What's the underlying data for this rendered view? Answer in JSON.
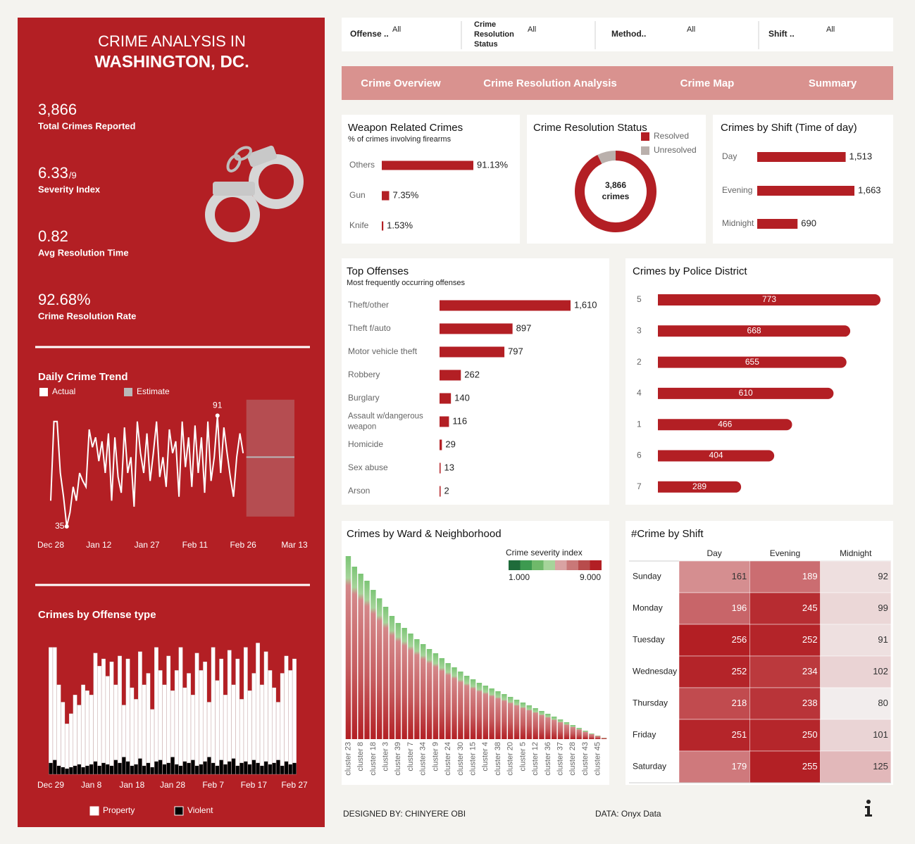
{
  "sidebar": {
    "title_lines": [
      "CRIME ANALYSIS IN",
      "WASHINGTON, DC."
    ],
    "kpis": [
      {
        "value": "3,866",
        "label": "Total Crimes Reported"
      },
      {
        "value": "6.33",
        "unit": "/9",
        "label": "Severity Index"
      },
      {
        "value": "0.82",
        "label": "Avg Resolution Time"
      },
      {
        "value": "92.68%",
        "label": "Crime Resolution Rate"
      }
    ]
  },
  "filters": [
    {
      "label": "Offense ..",
      "value": "All"
    },
    {
      "label": "Crime Resolution Status",
      "value": "All"
    },
    {
      "label": "Method..",
      "value": "All"
    },
    {
      "label": "Shift ..",
      "value": "All"
    }
  ],
  "tabs": [
    "Crime Overview",
    "Crime Resolution Analysis",
    "Crime Map",
    "Summary"
  ],
  "footer": {
    "designer": "DESIGNED BY: CHINYERE OBI",
    "source": "DATA: Onyx Data"
  },
  "chart_data": [
    {
      "type": "line",
      "title": "Daily Crime Trend",
      "x": [
        "Dec 28",
        "Dec 29",
        "Dec 30",
        "Dec 31",
        "Jan 1",
        "Jan 2",
        "Jan 3",
        "Jan 4",
        "Jan 5",
        "Jan 6",
        "Jan 7",
        "Jan 8",
        "Jan 9",
        "Jan 10",
        "Jan 11",
        "Jan 12",
        "Jan 13",
        "Jan 14",
        "Jan 15",
        "Jan 16",
        "Jan 17",
        "Jan 18",
        "Jan 19",
        "Jan 20",
        "Jan 21",
        "Jan 22",
        "Jan 23",
        "Jan 24",
        "Jan 25",
        "Jan 26",
        "Jan 27",
        "Jan 28",
        "Jan 29",
        "Jan 30",
        "Jan 31",
        "Feb 1",
        "Feb 2",
        "Feb 3",
        "Feb 4",
        "Feb 5",
        "Feb 6",
        "Feb 7",
        "Feb 8",
        "Feb 9",
        "Feb 10",
        "Feb 11",
        "Feb 12",
        "Feb 13",
        "Feb 14",
        "Feb 15",
        "Feb 16",
        "Feb 17",
        "Feb 18",
        "Feb 19",
        "Feb 20",
        "Feb 21",
        "Feb 22",
        "Feb 23",
        "Feb 24",
        "Feb 25",
        "Feb 26"
      ],
      "series": [
        {
          "name": "Actual",
          "color": "#ffffff",
          "values": [
            48,
            88,
            88,
            62,
            50,
            35,
            42,
            55,
            48,
            62,
            58,
            55,
            84,
            75,
            80,
            68,
            78,
            62,
            82,
            48,
            80,
            60,
            52,
            85,
            62,
            70,
            45,
            88,
            72,
            62,
            82,
            58,
            72,
            88,
            60,
            70,
            55,
            84,
            72,
            78,
            50,
            88,
            65,
            80,
            55,
            86,
            62,
            80,
            52,
            88,
            58,
            70,
            91,
            62,
            85,
            72,
            60,
            50,
            70,
            82,
            72
          ]
        }
      ],
      "estimate": {
        "name": "Estimate",
        "color": "#b9b9b9",
        "x": [
          "Feb 27",
          "Mar 13"
        ],
        "value": 70,
        "range": [
          40,
          99
        ]
      },
      "annotate_extremes": true,
      "xlim": [
        "Dec 28",
        "Mar 13"
      ],
      "xticks": [
        "Dec 28",
        "Jan 12",
        "Jan 27",
        "Feb 11",
        "Feb 26",
        "Mar 13"
      ],
      "ylim": [
        30,
        100
      ]
    },
    {
      "type": "bar",
      "stacked": true,
      "title": "Crimes by Offense type",
      "x": [
        "Dec 29",
        "Dec 30",
        "Dec 31",
        "Jan 1",
        "Jan 2",
        "Jan 3",
        "Jan 4",
        "Jan 5",
        "Jan 6",
        "Jan 7",
        "Jan 8",
        "Jan 9",
        "Jan 10",
        "Jan 11",
        "Jan 12",
        "Jan 13",
        "Jan 14",
        "Jan 15",
        "Jan 16",
        "Jan 17",
        "Jan 18",
        "Jan 19",
        "Jan 20",
        "Jan 21",
        "Jan 22",
        "Jan 23",
        "Jan 24",
        "Jan 25",
        "Jan 26",
        "Jan 27",
        "Jan 28",
        "Jan 29",
        "Jan 30",
        "Jan 31",
        "Feb 1",
        "Feb 2",
        "Feb 3",
        "Feb 4",
        "Feb 5",
        "Feb 6",
        "Feb 7",
        "Feb 8",
        "Feb 9",
        "Feb 10",
        "Feb 11",
        "Feb 12",
        "Feb 13",
        "Feb 14",
        "Feb 15",
        "Feb 16",
        "Feb 17",
        "Feb 18",
        "Feb 19",
        "Feb 20",
        "Feb 21",
        "Feb 22",
        "Feb 23",
        "Feb 24",
        "Feb 25",
        "Feb 26",
        "Feb 27"
      ],
      "series": [
        {
          "name": "Violent",
          "color": "#000000",
          "values": [
            8,
            10,
            6,
            5,
            4,
            5,
            6,
            7,
            5,
            6,
            7,
            9,
            6,
            8,
            7,
            6,
            10,
            8,
            12,
            9,
            6,
            7,
            11,
            6,
            8,
            5,
            9,
            10,
            7,
            8,
            12,
            7,
            6,
            9,
            8,
            10,
            6,
            7,
            9,
            12,
            8,
            6,
            10,
            7,
            9,
            11,
            6,
            8,
            9,
            7,
            10,
            8,
            6,
            9,
            7,
            8,
            10,
            6,
            9,
            7,
            8
          ]
        },
        {
          "name": "Property",
          "color": "#ffffff",
          "values": [
            80,
            78,
            56,
            45,
            31,
            37,
            49,
            41,
            57,
            52,
            48,
            75,
            69,
            72,
            61,
            72,
            52,
            74,
            36,
            71,
            54,
            45,
            74,
            56,
            62,
            40,
            79,
            62,
            55,
            74,
            46,
            65,
            82,
            51,
            62,
            45,
            78,
            65,
            69,
            38,
            80,
            59,
            70,
            48,
            77,
            51,
            74,
            44,
            79,
            51,
            60,
            83,
            56,
            76,
            65,
            52,
            40,
            64,
            73,
            65,
            72
          ]
        }
      ],
      "xlim": [
        "Dec 29",
        "Feb 27"
      ],
      "xticks": [
        "Dec 29",
        "Jan 8",
        "Jan 18",
        "Jan 28",
        "Feb 7",
        "Feb 17",
        "Feb 27"
      ]
    },
    {
      "type": "bar",
      "orientation": "horizontal",
      "title": "Weapon Related Crimes",
      "subtitle": "% of crimes involving firearms",
      "categories": [
        "Others",
        "Gun",
        "Knife"
      ],
      "values": [
        91.13,
        7.35,
        1.53
      ],
      "value_labels": [
        "91.13%",
        "7.35%",
        "1.53%"
      ],
      "color": "#b31f24"
    },
    {
      "type": "pie",
      "title": "Crime Resolution Status",
      "categories": [
        "Resolved",
        "Unresolved"
      ],
      "values": [
        92.68,
        7.32
      ],
      "colors": [
        "#b31f24",
        "#bab0ac"
      ],
      "center_value": "3,866",
      "center_text": "crimes"
    },
    {
      "type": "bar",
      "orientation": "horizontal",
      "title": "Crimes by Shift (Time of day)",
      "categories": [
        "Day",
        "Evening",
        "Midnight"
      ],
      "values": [
        1513,
        1663,
        690
      ],
      "value_labels": [
        "1,513",
        "1,663",
        "690"
      ],
      "color": "#b31f24"
    },
    {
      "type": "bar",
      "orientation": "horizontal",
      "title": "Top Offenses",
      "subtitle": "Most frequently occurring offenses",
      "categories": [
        "Theft/other",
        "Theft f/auto",
        "Motor vehicle theft",
        "Robbery",
        "Burglary",
        "Assault w/dangerous weapon",
        "Homicide",
        "Sex abuse",
        "Arson"
      ],
      "values": [
        1610,
        897,
        797,
        262,
        140,
        116,
        29,
        13,
        2
      ],
      "value_labels": [
        "1,610",
        "897",
        "797",
        "262",
        "140",
        "116",
        "29",
        "13",
        "2"
      ],
      "color": "#b31f24"
    },
    {
      "type": "bar",
      "orientation": "horizontal",
      "labels_inside": true,
      "title": "Crimes by Police District",
      "categories": [
        "5",
        "3",
        "2",
        "4",
        "1",
        "6",
        "7"
      ],
      "values": [
        773,
        668,
        655,
        610,
        466,
        404,
        289
      ],
      "color": "#b31f24"
    },
    {
      "type": "bar",
      "title": "Crimes by Ward & Neighborhood",
      "categories": [
        "cluster 23",
        null,
        "cluster 8",
        null,
        "cluster 18",
        null,
        "cluster 3",
        null,
        "cluster 39",
        null,
        "cluster 7",
        null,
        "cluster 34",
        null,
        "cluster 9",
        null,
        "cluster 24",
        null,
        "cluster 30",
        null,
        "cluster 15",
        null,
        "cluster 4",
        null,
        "cluster 38",
        null,
        "cluster 20",
        null,
        "cluster 5",
        null,
        "cluster 12",
        null,
        "cluster 36",
        null,
        "cluster 37",
        null,
        "cluster 28",
        null,
        "cluster 43",
        null,
        "cluster 45",
        null
      ],
      "values": [
        260,
        245,
        235,
        225,
        212,
        200,
        188,
        175,
        165,
        158,
        150,
        142,
        135,
        128,
        122,
        115,
        108,
        102,
        96,
        90,
        85,
        80,
        76,
        72,
        68,
        64,
        60,
        56,
        52,
        48,
        44,
        40,
        36,
        32,
        28,
        24,
        20,
        16,
        12,
        8,
        5,
        2
      ],
      "legend": {
        "title": "Crime severity index",
        "min": {
          "value": 1,
          "label": "1.000"
        },
        "max": {
          "value": 9,
          "label": "9.000"
        },
        "colors": [
          "#1e6b3a",
          "#3d9a50",
          "#6fb96a",
          "#a6d49a",
          "#d9a3a3",
          "#c97878",
          "#b84c4c",
          "#b31f24"
        ]
      }
    },
    {
      "type": "heatmap",
      "title": "#Crime by Shift",
      "columns": [
        "Day",
        "Evening",
        "Midnight"
      ],
      "rows": [
        "Sunday",
        "Monday",
        "Tuesday",
        "Wednesday",
        "Thursday",
        "Friday",
        "Saturday"
      ],
      "values": [
        [
          161,
          189,
          92
        ],
        [
          196,
          245,
          99
        ],
        [
          256,
          252,
          91
        ],
        [
          252,
          234,
          102
        ],
        [
          218,
          238,
          80
        ],
        [
          251,
          250,
          101
        ],
        [
          179,
          255,
          125
        ]
      ],
      "colors": [
        "#f2eded",
        "#b31f24"
      ]
    }
  ]
}
